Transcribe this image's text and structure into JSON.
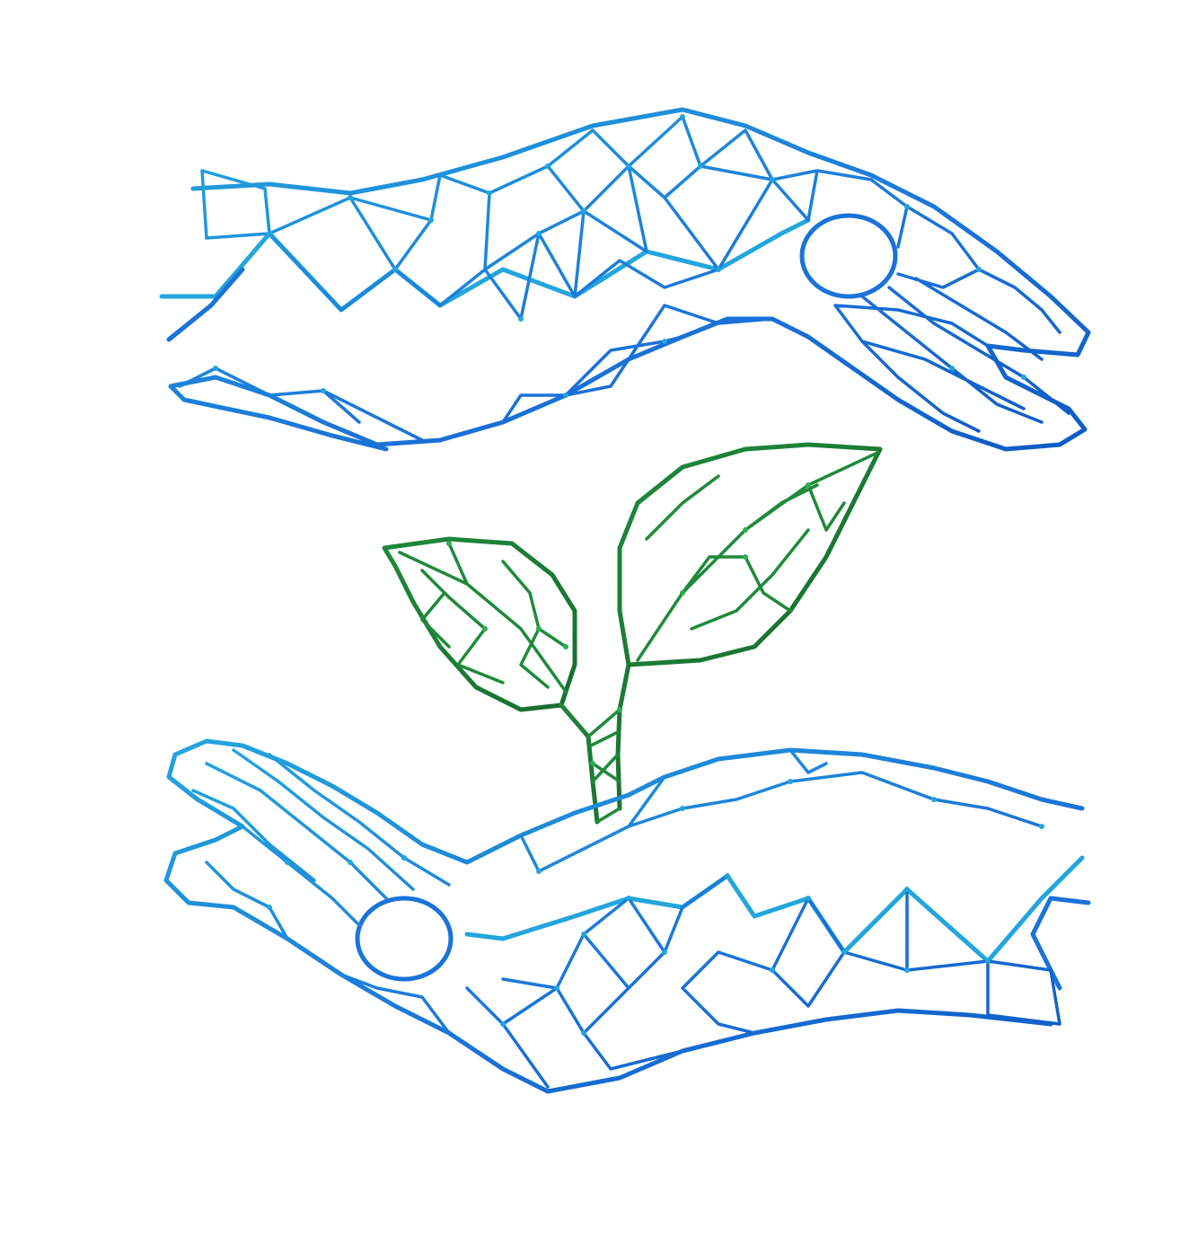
{
  "illustration": {
    "subject": "hands-holding-seedling",
    "colors": {
      "hand_primary": "#1a73d9",
      "hand_light": "#22a6dc",
      "hand_dark": "#0d5bc4",
      "plant_primary": "#1e8a3a",
      "plant_dark": "#176e2e",
      "background": "#ffffff"
    }
  }
}
